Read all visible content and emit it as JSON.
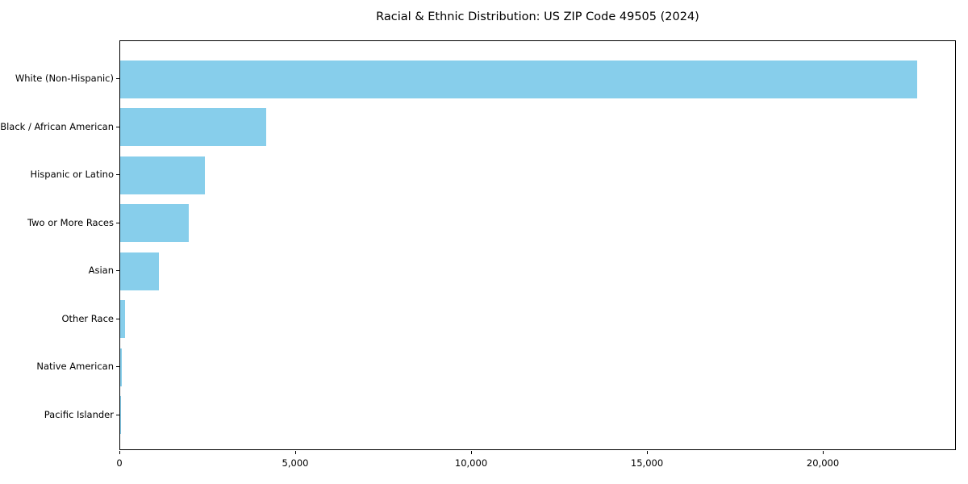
{
  "figure": {
    "kind": "matplotlib-style static chart image"
  },
  "chart_data": {
    "type": "bar",
    "orientation": "horizontal",
    "title": "Racial & Ethnic Distribution: US ZIP Code 49505 (2024)",
    "categories": [
      "White (Non-Hispanic)",
      "Black / African American",
      "Hispanic or Latino",
      "Two or More Races",
      "Asian",
      "Other Race",
      "Native American",
      "Pacific Islander"
    ],
    "values": [
      22650,
      4150,
      2400,
      1950,
      1100,
      140,
      40,
      10
    ],
    "xlabel": "",
    "ylabel": "",
    "xlim": [
      0,
      23783
    ],
    "xticks": {
      "values": [
        0,
        5000,
        10000,
        15000,
        20000
      ],
      "labels": [
        "0",
        "5,000",
        "10,000",
        "15,000",
        "20,000"
      ]
    },
    "bar_color": "#87CEEB",
    "frame_color": "#000000",
    "grid": false,
    "legend": null
  }
}
